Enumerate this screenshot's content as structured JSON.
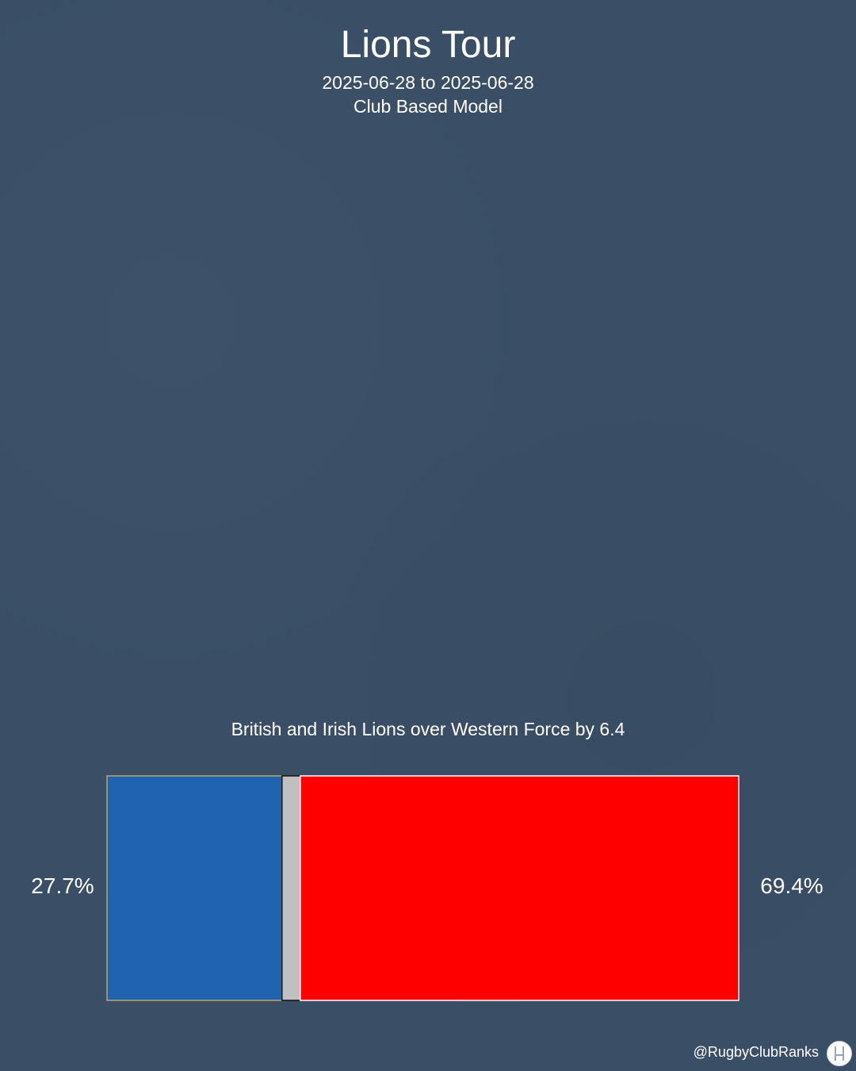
{
  "header": {
    "title": "Lions Tour",
    "date_range": "2025-06-28 to 2025-06-28",
    "model": "Club Based Model"
  },
  "chart_data": {
    "type": "bar",
    "orientation": "horizontal-stacked",
    "annotation": "British and Irish Lions over Western Force by 6.4",
    "segments": [
      {
        "value": 27.7,
        "label": "27.7%",
        "color": "#2064b0",
        "border": "#b9a46a"
      },
      {
        "value": 2.9,
        "color": "#c0c0c0",
        "border": "#111111"
      },
      {
        "value": 69.4,
        "label": "69.4%",
        "color": "#ff0000",
        "border": "#ffffff"
      }
    ],
    "total": 100
  },
  "footer": {
    "credit": "@RugbyClubRanks",
    "logo_icon": "rugby-posts-icon"
  },
  "colors": {
    "background": "#3a4f66",
    "text": "#ffffff"
  }
}
